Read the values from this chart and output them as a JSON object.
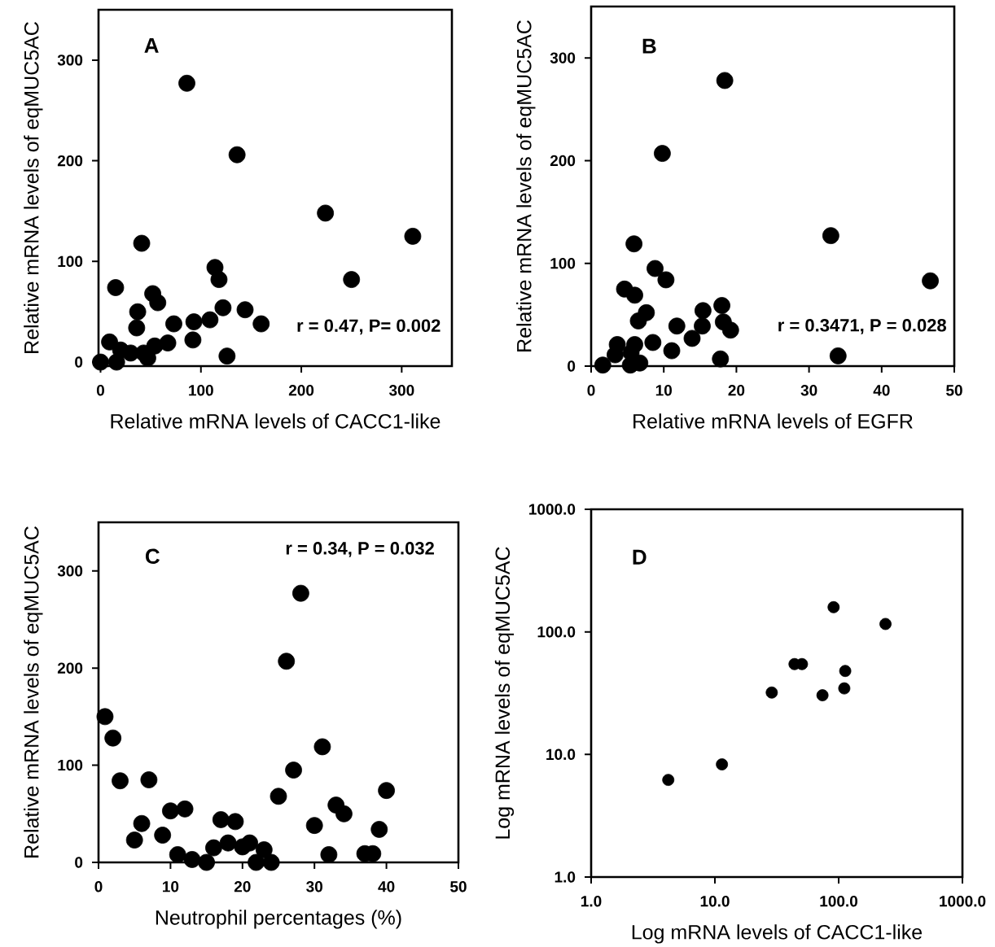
{
  "chart_data": [
    {
      "type": "scatter",
      "title": "A",
      "xlabel": "Relative mRNA levels of CACC1-like",
      "ylabel": "Relative mRNA levels of eqMUC5AC",
      "annotations": [
        "r = 0.47, P= 0.002"
      ],
      "xlim": [
        -2,
        350
      ],
      "ylim": [
        -4,
        350
      ],
      "xticks": [
        0,
        100,
        200,
        300
      ],
      "yticks": [
        0,
        100,
        200,
        300
      ],
      "series": [
        {
          "color": "#000000",
          "x": [
            86,
            136,
            224,
            311,
            41,
            250,
            114,
            118,
            15,
            52,
            57,
            37,
            36,
            122,
            144,
            160,
            73,
            93,
            109,
            92,
            67,
            54,
            43,
            9,
            20,
            30,
            126,
            0,
            16,
            47
          ],
          "values": [
            277,
            206,
            148,
            125,
            118,
            82,
            94,
            82,
            74,
            68,
            59,
            50,
            34,
            54,
            52,
            38,
            38,
            40,
            42,
            22,
            19,
            16,
            9,
            20,
            12,
            9,
            6,
            0,
            0,
            4
          ]
        }
      ]
    },
    {
      "type": "scatter",
      "title": "B",
      "xlabel": "Relative mRNA levels of EGFR",
      "ylabel": "Relative mRNA levels of eqMUC5AC",
      "annotations": [
        "r = 0.3471, P = 0.028"
      ],
      "xlim": [
        0,
        50
      ],
      "ylim": [
        0,
        350
      ],
      "xticks": [
        0,
        10,
        20,
        30,
        40,
        50
      ],
      "yticks": [
        0,
        100,
        200,
        300
      ],
      "series": [
        {
          "color": "#000000",
          "x": [
            18.4,
            9.8,
            33,
            46.7,
            5.9,
            8.8,
            10.3,
            4.6,
            6.0,
            7.6,
            6.5,
            18,
            15.4,
            18.2,
            19.2,
            15.3,
            11.8,
            13.9,
            8.5,
            11.1,
            17.8,
            34,
            3.6,
            6.0,
            3.3,
            5.5,
            6.7,
            5.4,
            1.6
          ],
          "values": [
            278,
            207,
            127,
            83,
            119,
            95,
            84,
            75,
            69,
            52,
            44,
            59,
            54,
            43,
            35,
            39,
            39,
            27,
            23,
            15,
            7,
            10,
            21,
            21,
            11,
            13,
            3,
            1,
            1
          ]
        }
      ]
    },
    {
      "type": "scatter",
      "title": "C",
      "xlabel": "Neutrophil percentages (%)",
      "ylabel": "Relative mRNA levels of eqMUC5AC",
      "annotations": [
        "r = 0.34, P = 0.032"
      ],
      "xlim": [
        0,
        50
      ],
      "ylim": [
        0,
        350
      ],
      "xticks": [
        0,
        10,
        20,
        30,
        40,
        50
      ],
      "yticks": [
        0,
        100,
        200,
        300
      ],
      "series": [
        {
          "color": "#000000",
          "x": [
            28.1,
            26.1,
            0.9,
            2.0,
            31.1,
            27.1,
            3.0,
            7.0,
            40,
            25,
            33,
            34.1,
            10,
            12,
            6.0,
            5.0,
            8.9,
            17,
            19,
            30,
            39,
            16,
            18,
            20,
            21,
            23,
            11,
            13,
            15,
            21.9,
            24,
            32,
            37,
            38.1
          ],
          "values": [
            277,
            207,
            150,
            128,
            119,
            95,
            84,
            85,
            74,
            68,
            59,
            50,
            53,
            55,
            40,
            23,
            28,
            44,
            42,
            38,
            34,
            15,
            20,
            16,
            20,
            13,
            8,
            3,
            0,
            0,
            0,
            8,
            9,
            9
          ]
        }
      ]
    },
    {
      "type": "scatter",
      "title": "D",
      "xlabel": "Log mRNA levels of CACC1-like",
      "ylabel": "Log mRNA levels of eqMUC5AC",
      "log": "xy",
      "xlim": [
        1,
        1000
      ],
      "ylim": [
        1,
        1000
      ],
      "xticks": [
        {
          "value": 1,
          "label": "1.0"
        },
        {
          "value": 10,
          "label": "10.0"
        },
        {
          "value": 100,
          "label": "100.0"
        },
        {
          "value": 1000,
          "label": "1000.0"
        }
      ],
      "yticks": [
        {
          "value": 1,
          "label": "1.0"
        },
        {
          "value": 10,
          "label": "10.0"
        },
        {
          "value": 100,
          "label": "100.0"
        },
        {
          "value": 1000,
          "label": "1000.0"
        }
      ],
      "series": [
        {
          "color": "#000000",
          "x": [
            4.2,
            11.4,
            28.8,
            44,
            50.5,
            74,
            111,
            113,
            91,
            239
          ],
          "values": [
            6.2,
            8.3,
            32,
            54.6,
            54.6,
            30.4,
            34.6,
            48,
            159,
            116
          ]
        }
      ]
    }
  ]
}
